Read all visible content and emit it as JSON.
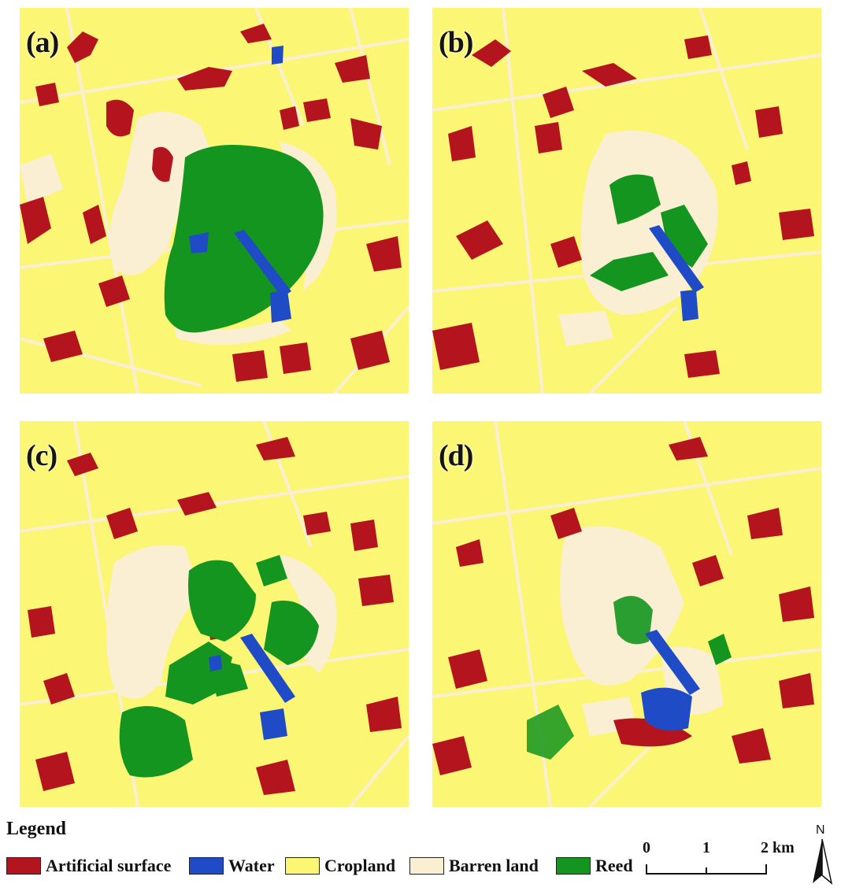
{
  "colors": {
    "artificial": "#b3141d",
    "water": "#1f4cc6",
    "cropland": "#fbf674",
    "barren": "#faefd2",
    "reed": "#13951f"
  },
  "panels": [
    {
      "id": "a",
      "label": "(a)"
    },
    {
      "id": "b",
      "label": "(b)"
    },
    {
      "id": "c",
      "label": "(c)"
    },
    {
      "id": "d",
      "label": "(d)"
    }
  ],
  "legend": {
    "title": "Legend",
    "items": [
      {
        "label": "Artificial surface",
        "color": "#b3141d"
      },
      {
        "label": "Water",
        "color": "#1f4cc6"
      },
      {
        "label": "Cropland",
        "color": "#fbf674"
      },
      {
        "label": "Barren land",
        "color": "#faefd2"
      },
      {
        "label": "Reed",
        "color": "#13951f"
      }
    ]
  },
  "scale_bar": {
    "ticks": [
      "0",
      "1",
      "2 km"
    ]
  },
  "north_arrow": {
    "label": "N"
  }
}
